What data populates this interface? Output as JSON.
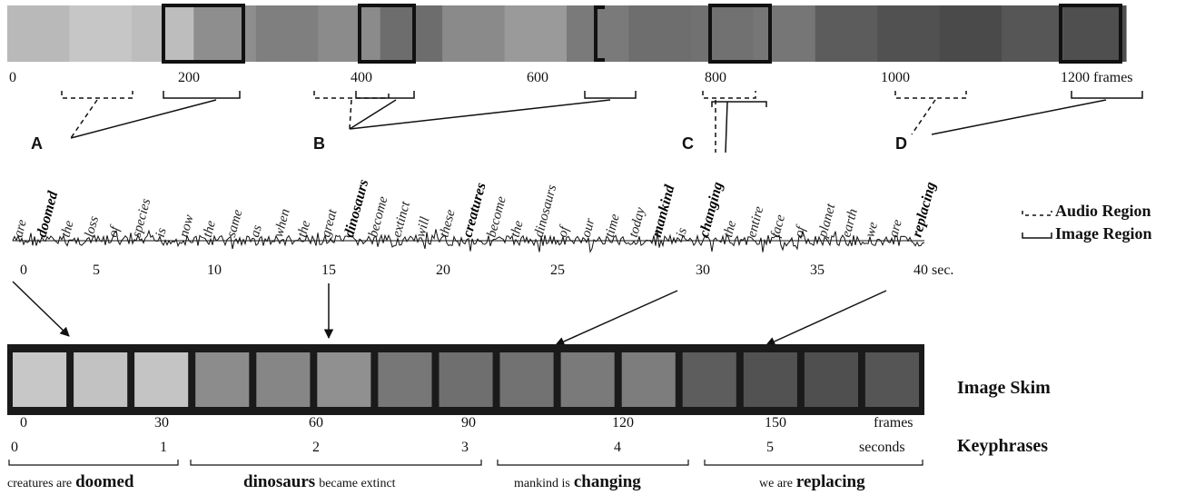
{
  "filmstrip": {
    "frame_ticks": [
      "0",
      "200",
      "400",
      "600",
      "800",
      "1000",
      "1200 frames"
    ],
    "colors": [
      "#b9b9b9",
      "#c6c6c6",
      "#bdbdbd",
      "#8e8e8e",
      "#7f7f7f",
      "#8b8b8b",
      "#6d6d6d",
      "#8a8a8a",
      "#9a9a9a",
      "#7a7a7a",
      "#6e6e6e",
      "#717171",
      "#767676",
      "#5c5c5c",
      "#515151",
      "#4a4a4a",
      "#565656",
      "#4f4f4f"
    ]
  },
  "keyframe_labels": [
    "A",
    "B",
    "C",
    "D"
  ],
  "transcript": {
    "words": [
      {
        "t": "are",
        "b": false
      },
      {
        "t": "doomed",
        "b": true
      },
      {
        "t": "the",
        "b": false
      },
      {
        "t": "loss",
        "b": false
      },
      {
        "t": "of",
        "b": false
      },
      {
        "t": "species",
        "b": false
      },
      {
        "t": "is",
        "b": false
      },
      {
        "t": "now",
        "b": false
      },
      {
        "t": "the",
        "b": false
      },
      {
        "t": "same",
        "b": false
      },
      {
        "t": "as",
        "b": false
      },
      {
        "t": "when",
        "b": false
      },
      {
        "t": "the",
        "b": false
      },
      {
        "t": "great",
        "b": false
      },
      {
        "t": "dinosaurs",
        "b": true
      },
      {
        "t": "become",
        "b": false
      },
      {
        "t": "extinct",
        "b": false
      },
      {
        "t": "will",
        "b": false
      },
      {
        "t": "these",
        "b": false
      },
      {
        "t": "creatures",
        "b": true
      },
      {
        "t": "become",
        "b": false
      },
      {
        "t": "the",
        "b": false
      },
      {
        "t": "dinosaurs",
        "b": false
      },
      {
        "t": "of",
        "b": false
      },
      {
        "t": "our",
        "b": false
      },
      {
        "t": "time",
        "b": false
      },
      {
        "t": "today",
        "b": false
      },
      {
        "t": "mankind",
        "b": true
      },
      {
        "t": "is",
        "b": false
      },
      {
        "t": "changing",
        "b": true
      },
      {
        "t": "the",
        "b": false
      },
      {
        "t": "entire",
        "b": false
      },
      {
        "t": "face",
        "b": false
      },
      {
        "t": "of",
        "b": false
      },
      {
        "t": "planet",
        "b": false
      },
      {
        "t": "earth",
        "b": false
      },
      {
        "t": "we",
        "b": false
      },
      {
        "t": "are",
        "b": false
      },
      {
        "t": "replacing",
        "b": true
      }
    ],
    "time_ticks": [
      "0",
      "5",
      "10",
      "15",
      "20",
      "25",
      "30",
      "35",
      "40 sec."
    ]
  },
  "legend": {
    "audio": "Audio Region",
    "image": "Image Region"
  },
  "image_skim": {
    "title": "Image Skim",
    "frame_ticks": [
      "0",
      "30",
      "60",
      "90",
      "120",
      "150",
      "frames"
    ],
    "colors": [
      "#c7c7c7",
      "#c2c2c2",
      "#c4c4c4",
      "#8c8c8c",
      "#868686",
      "#909090",
      "#777777",
      "#6f6f6f",
      "#727272",
      "#7a7a7a",
      "#7d7d7d",
      "#5d5d5d",
      "#525252",
      "#4f4f4f",
      "#555555"
    ]
  },
  "keyphrases": {
    "title": "Keyphrases",
    "second_ticks": [
      "0",
      "1",
      "2",
      "3",
      "4",
      "5",
      "seconds"
    ],
    "phrases": [
      {
        "plain": "creatures are",
        "bold": "doomed"
      },
      {
        "bold": "dinosaurs",
        "plain": "became extinct"
      },
      {
        "plain": "mankind is",
        "bold": "changing"
      },
      {
        "plain": "we are",
        "bold": "replacing"
      }
    ]
  }
}
